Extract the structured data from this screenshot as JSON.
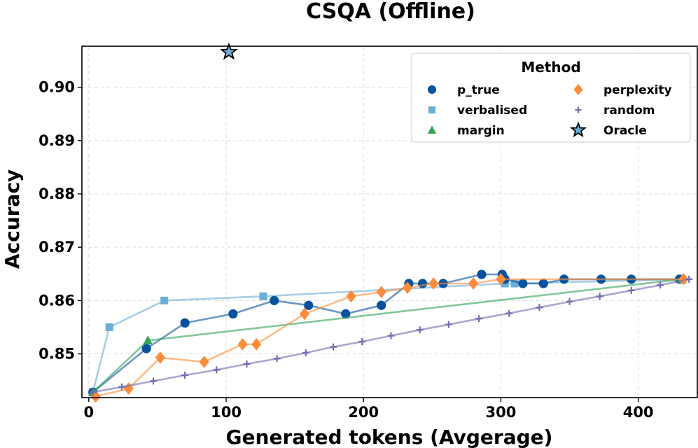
{
  "chart_data": {
    "type": "line",
    "title": "CSQA (Offline)",
    "xlabel": "Generated tokens (Avgerage)",
    "ylabel": "Accuracy",
    "xlim": [
      -5,
      443
    ],
    "ylim": [
      0.8418,
      0.9077
    ],
    "xticks": [
      0,
      100,
      200,
      300,
      400
    ],
    "yticks": [
      0.85,
      0.86,
      0.87,
      0.88,
      0.89,
      0.9
    ],
    "xtick_labels": [
      "0",
      "100",
      "200",
      "300",
      "400"
    ],
    "ytick_labels": [
      "0.85",
      "0.86",
      "0.87",
      "0.88",
      "0.89",
      "0.90"
    ],
    "grid": true,
    "legend": {
      "title": "Method",
      "position": "top-right"
    },
    "series": [
      {
        "name": "verbalised",
        "marker": "square",
        "color": "#6baed6",
        "x": [
          3,
          15,
          55,
          127,
          303,
          310,
          432
        ],
        "y": [
          0.8428,
          0.855,
          0.86,
          0.8608,
          0.8632,
          0.8632,
          0.864
        ]
      },
      {
        "name": "p_true",
        "marker": "circle",
        "color": "#08519c",
        "x": [
          3,
          42,
          70,
          105,
          135,
          160,
          187,
          213,
          233,
          243,
          258,
          286,
          301,
          303,
          316,
          331,
          346,
          373,
          395,
          430
        ],
        "y": [
          0.8428,
          0.851,
          0.8558,
          0.8575,
          0.86,
          0.8591,
          0.8575,
          0.8591,
          0.8632,
          0.8632,
          0.8632,
          0.8649,
          0.8649,
          0.864,
          0.8632,
          0.8632,
          0.864,
          0.864,
          0.864,
          0.864
        ]
      },
      {
        "name": "margin",
        "marker": "triangle",
        "color": "#31a354",
        "x": [
          3,
          43,
          432
        ],
        "y": [
          0.8428,
          0.8525,
          0.864
        ]
      },
      {
        "name": "perplexity",
        "marker": "diamond",
        "color": "#fd8d3c",
        "x": [
          5,
          29,
          52,
          84,
          112,
          122,
          157,
          191,
          213,
          232,
          251,
          280,
          300,
          433
        ],
        "y": [
          0.842,
          0.8435,
          0.8493,
          0.8485,
          0.8518,
          0.8518,
          0.8575,
          0.8608,
          0.8616,
          0.8624,
          0.8632,
          0.8632,
          0.864,
          0.864
        ]
      },
      {
        "name": "random",
        "marker": "plus",
        "color": "#756bb1",
        "x": [
          3,
          24,
          47,
          70,
          93,
          115,
          137,
          158,
          178,
          199,
          220,
          241,
          262,
          284,
          306,
          328,
          350,
          372,
          395,
          416,
          437
        ],
        "y": [
          0.8428,
          0.8438,
          0.8449,
          0.846,
          0.847,
          0.8481,
          0.8491,
          0.8502,
          0.8513,
          0.8523,
          0.8534,
          0.8545,
          0.8555,
          0.8566,
          0.8576,
          0.8587,
          0.8598,
          0.8608,
          0.8619,
          0.8629,
          0.864
        ]
      },
      {
        "name": "Oracle",
        "marker": "star",
        "color": "#6baed6",
        "x": [
          102
        ],
        "y": [
          0.9066
        ]
      }
    ],
    "legend_order": [
      "p_true",
      "verbalised",
      "margin",
      "perplexity",
      "random",
      "Oracle"
    ]
  }
}
